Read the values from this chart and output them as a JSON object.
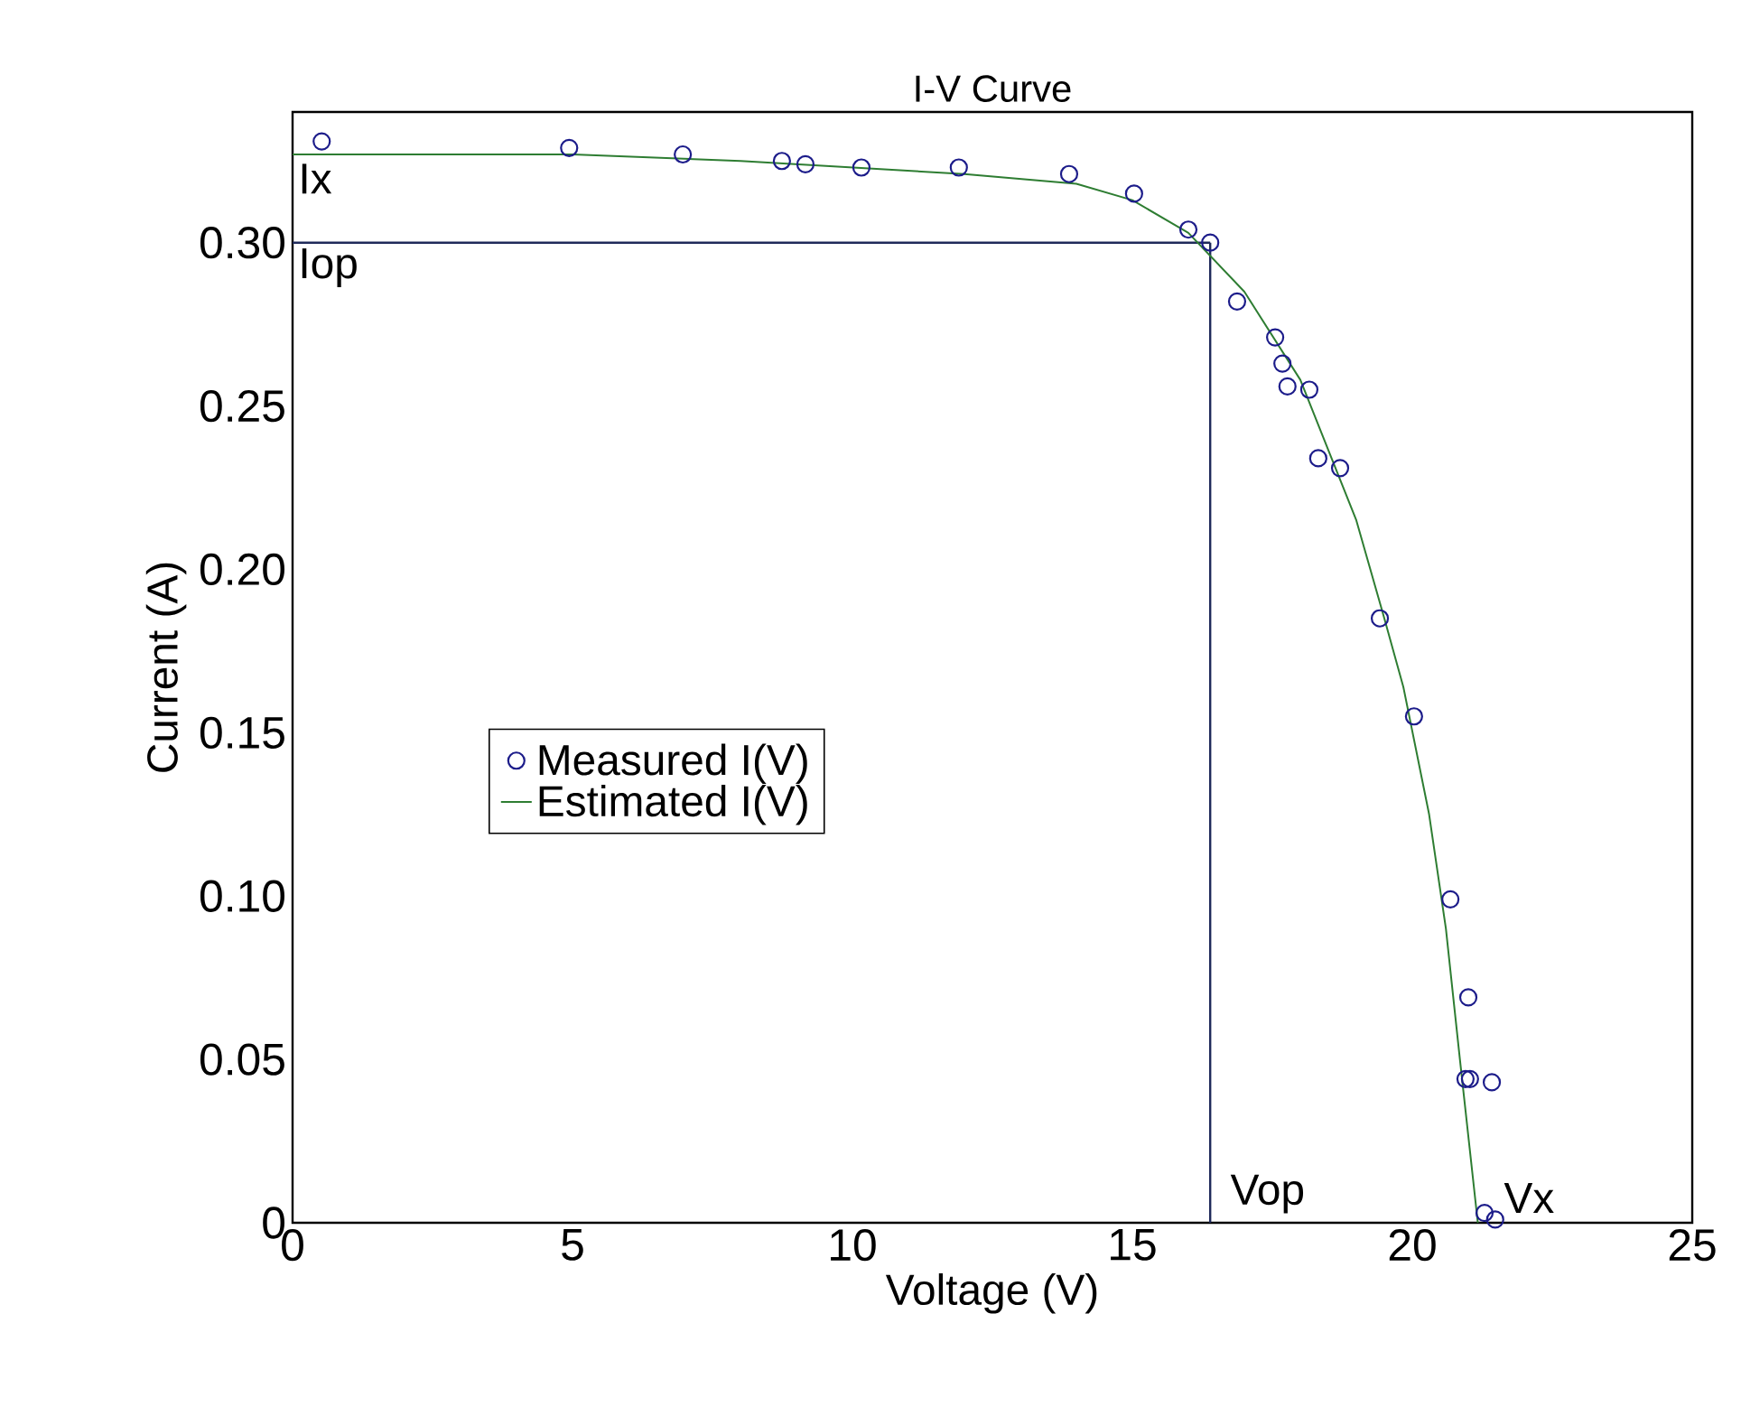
{
  "chart_data": {
    "type": "scatter",
    "title": "I-V Curve",
    "xlabel": "Voltage (V)",
    "ylabel": "Current (A)",
    "xlim": [
      0,
      25
    ],
    "ylim": [
      0,
      0.34
    ],
    "xticks": [
      0,
      5,
      10,
      15,
      20,
      25
    ],
    "yticks": [
      {
        "value": 0,
        "label": "0"
      },
      {
        "value": 0.05,
        "label": "0.05"
      },
      {
        "value": 0.1,
        "label": "0.10"
      },
      {
        "value": 0.15,
        "label": "0.15"
      },
      {
        "value": 0.2,
        "label": "0.20"
      },
      {
        "value": 0.25,
        "label": "0.25"
      },
      {
        "value": 0.3,
        "label": "0.30"
      }
    ],
    "grid": false,
    "legend": "left",
    "series": [
      {
        "name": "Measured I(V)",
        "marker": "circle",
        "color": "#1c1c8a",
        "x": [
          0.52,
          4.94,
          6.97,
          8.74,
          9.16,
          10.16,
          11.9,
          13.87,
          15.03,
          16.0,
          16.39,
          16.87,
          17.55,
          17.68,
          17.77,
          18.16,
          18.32,
          18.71,
          19.42,
          20.03,
          20.68,
          21.0,
          20.95,
          21.03,
          21.42,
          21.29,
          21.48
        ],
        "values": [
          0.331,
          0.329,
          0.327,
          0.325,
          0.324,
          0.323,
          0.323,
          0.321,
          0.315,
          0.304,
          0.3,
          0.282,
          0.271,
          0.263,
          0.256,
          0.255,
          0.234,
          0.231,
          0.185,
          0.155,
          0.099,
          0.069,
          0.044,
          0.044,
          0.043,
          0.003,
          0.001
        ]
      },
      {
        "name": "Estimated I(V)",
        "type": "line",
        "marker": "none",
        "line_style": "solid",
        "color": "#2e7d32",
        "x": [
          0,
          5,
          8,
          10,
          12,
          14,
          15,
          16,
          17,
          18,
          19,
          19.5,
          19.84,
          20.3,
          20.6,
          20.85,
          21.17
        ],
        "values": [
          0.327,
          0.327,
          0.325,
          0.323,
          0.321,
          0.318,
          0.313,
          0.303,
          0.285,
          0.258,
          0.215,
          0.185,
          0.164,
          0.125,
          0.09,
          0.05,
          0.0
        ]
      }
    ],
    "ref_lines": [
      {
        "axis": "y",
        "value": 0.3,
        "label": "Iop",
        "color": "#1f2a5a",
        "line_style": "solid"
      },
      {
        "axis": "x",
        "value": 16.39,
        "label": "Vop",
        "color": "#1f2a5a",
        "line_style": "solid"
      }
    ],
    "annotations": [
      {
        "text": "Ix",
        "x": 0,
        "y": 0.327
      },
      {
        "text": "Vx",
        "x": 21.2,
        "y": 0
      }
    ]
  }
}
